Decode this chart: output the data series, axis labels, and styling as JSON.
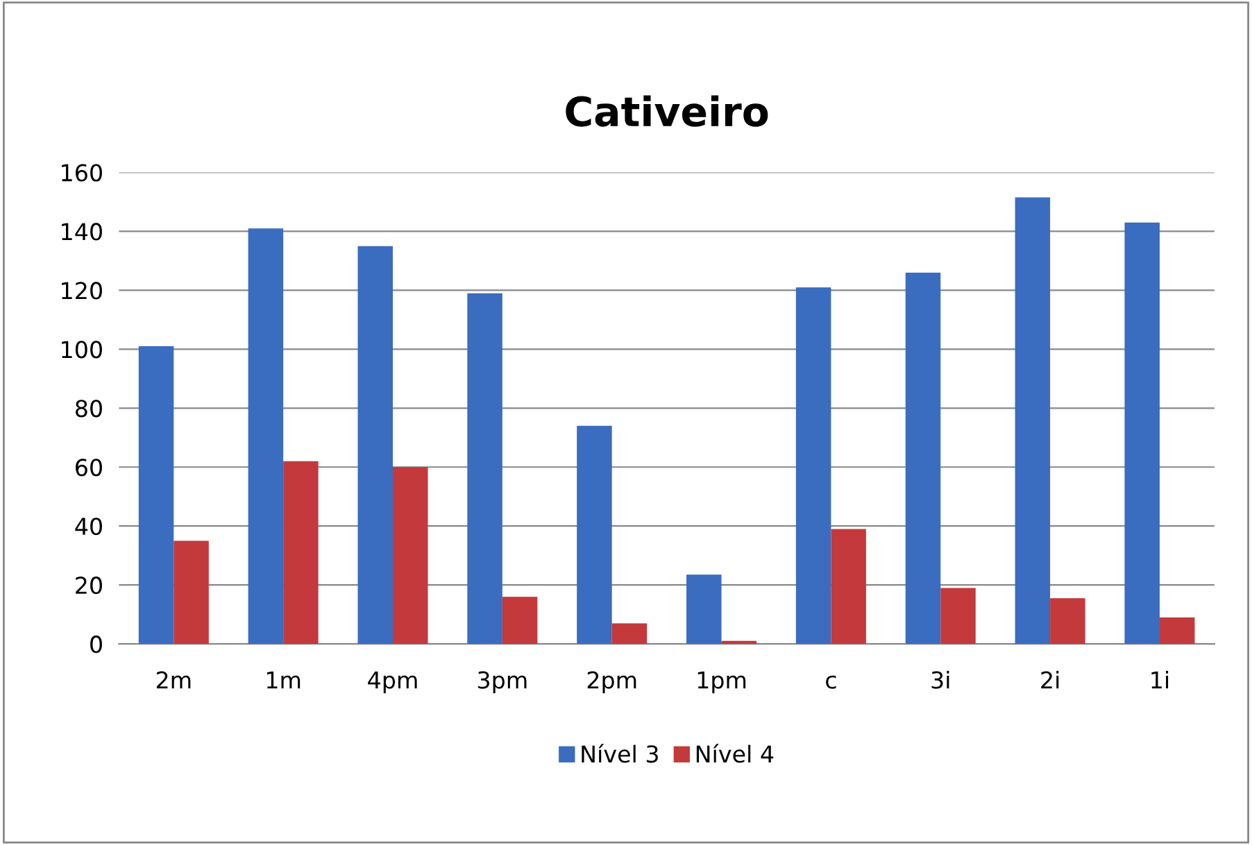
{
  "chart_data": {
    "type": "bar",
    "title": "Cativeiro",
    "categories": [
      "2m",
      "1m",
      "4pm",
      "3pm",
      "2pm",
      "1pm",
      "c",
      "3i",
      "2i",
      "1i"
    ],
    "series": [
      {
        "name": "Nível 3",
        "color": "#3a6cc0",
        "values": [
          101,
          141,
          135,
          119,
          74,
          23.5,
          121,
          126,
          151.5,
          143
        ]
      },
      {
        "name": "Nível 4",
        "color": "#c4393b",
        "values": [
          35,
          62,
          60,
          16,
          7,
          1,
          39,
          19,
          15.5,
          9
        ]
      }
    ],
    "ylim": [
      0,
      160
    ],
    "yticks": [
      0,
      20,
      40,
      60,
      80,
      100,
      120,
      140,
      160
    ],
    "grid": "y",
    "legend": "bottom"
  }
}
